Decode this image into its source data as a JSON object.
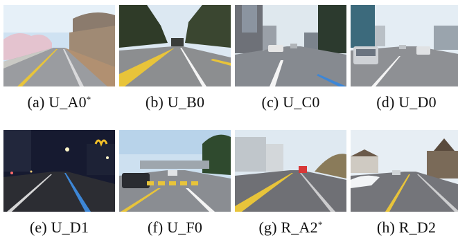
{
  "figure": {
    "panels": [
      {
        "letter": "(a)",
        "name": "U_A0",
        "mark": "*"
      },
      {
        "letter": "(b)",
        "name": "U_B0",
        "mark": ""
      },
      {
        "letter": "(c)",
        "name": "U_C0",
        "mark": ""
      },
      {
        "letter": "(d)",
        "name": "U_D0",
        "mark": ""
      },
      {
        "letter": "(e)",
        "name": "U_D1",
        "mark": ""
      },
      {
        "letter": "(f)",
        "name": "U_F0",
        "mark": ""
      },
      {
        "letter": "(g)",
        "name": "R_A2",
        "mark": "*"
      },
      {
        "letter": "(h)",
        "name": "R_D2",
        "mark": ""
      }
    ],
    "colors": {
      "sky_day": "#d6e6f3",
      "sky_night": "#1a1f3a",
      "asphalt": "#8a8d93",
      "asphalt_night": "#2c2d33",
      "lane_yellow": "#e8c43a",
      "lane_white": "#f4f4f4",
      "lane_blue": "#3d86d6"
    }
  }
}
